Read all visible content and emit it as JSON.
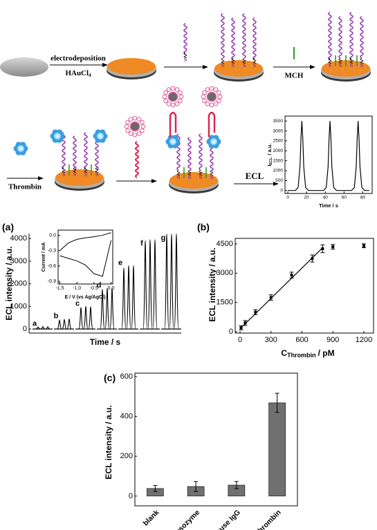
{
  "scheme": {
    "electrodeposition": "electrodeposition",
    "reagent": "HAuCl",
    "reagent_sub": "4",
    "mch": "MCH",
    "thrombin": "Thrombin",
    "ecl": "ECL",
    "thiol": "S"
  },
  "chart_data": [
    {
      "type": "line",
      "ylabel": "I",
      "ylabel_sub": "ECL",
      "ylabel_unit": "/ a.u.",
      "xlabel": "Time / s",
      "color": "#000000",
      "x": [
        0,
        8,
        11,
        13,
        14,
        15,
        16,
        17,
        19,
        22,
        38,
        41,
        43,
        44,
        45,
        46,
        47,
        49,
        52,
        68,
        71,
        73,
        74,
        75,
        76,
        77,
        79,
        82,
        87
      ],
      "values": [
        0,
        0,
        150,
        1200,
        2600,
        3500,
        2600,
        1200,
        150,
        0,
        0,
        150,
        1200,
        2600,
        3500,
        2600,
        1200,
        150,
        0,
        0,
        150,
        1200,
        2600,
        3500,
        2600,
        1200,
        150,
        0,
        0
      ],
      "xlim": [
        -3,
        90
      ],
      "ylim": [
        -150,
        3750
      ],
      "xticks": [
        0,
        20,
        40,
        60,
        80
      ],
      "yticks": [
        0,
        500,
        1000,
        1500,
        2000,
        2500,
        3000,
        3500
      ]
    },
    {
      "type": "peaks",
      "label": "(a)",
      "ylabel": "ECL intensity / a.u.",
      "xlabel": "Time / s",
      "color": "#000000",
      "ylim": [
        -180,
        4220
      ],
      "yticks": [
        0,
        1000,
        2000,
        3000,
        4000
      ],
      "groups": [
        {
          "label": "a",
          "values": [
            90,
            110,
            100
          ]
        },
        {
          "label": "b",
          "values": [
            400,
            430,
            450
          ]
        },
        {
          "label": "c",
          "values": [
            950,
            1000,
            980
          ]
        },
        {
          "label": "d",
          "values": [
            1750,
            1800,
            1800
          ]
        },
        {
          "label": "e",
          "values": [
            2700,
            2800,
            2800
          ]
        },
        {
          "label": "f",
          "values": [
            3900,
            3950,
            3950
          ]
        },
        {
          "label": "g",
          "values": [
            4200,
            4200,
            4200
          ]
        }
      ],
      "inset": {
        "type": "line",
        "xlabel": "E / V (vs Ag/AgCl)",
        "ylabel": "Current / mA",
        "color": "#000000",
        "x": [
          -1.5,
          -1.25,
          -1,
          -0.75,
          -0.5,
          -0.25,
          0
        ],
        "series": [
          {
            "values": [
              -0.3,
              -0.15,
              -0.08,
              -0.05,
              -0.03,
              0,
              0.05
            ]
          },
          {
            "values": [
              -0.4,
              -0.45,
              -0.5,
              -0.58,
              -0.75,
              -0.8,
              -0.1
            ]
          }
        ],
        "xlim": [
          -1.55,
          0.05
        ],
        "ylim": [
          -0.95,
          0.1
        ],
        "xticks": [
          -1.5,
          {
            "value": -1,
            "label": "-1.0"
          },
          -0.5,
          {
            "value": 0,
            "label": "0.0"
          }
        ],
        "yticks": [
          {
            "value": 0,
            "label": "0.0"
          },
          -0.3,
          -0.6,
          -0.9
        ]
      }
    },
    {
      "type": "scatter",
      "label": "(b)",
      "ylabel": "ECL intensity / a.u.",
      "xlabel": "C",
      "xlabel_sub": "Thrombin",
      "xlabel_unit": "/ pM",
      "color": "#000000",
      "x": [
        10,
        50,
        150,
        300,
        500,
        700,
        800,
        900,
        1200
      ],
      "values": [
        200,
        450,
        1000,
        1750,
        2900,
        3750,
        4250,
        4350,
        4400
      ],
      "errors": [
        100,
        120,
        130,
        140,
        150,
        180,
        200,
        120,
        100
      ],
      "fit": {
        "x": [
          0,
          800
        ],
        "y": [
          150,
          4300
        ]
      },
      "xlim": [
        -47,
        1294
      ],
      "ylim": [
        -70,
        4780
      ],
      "xticks": [
        0,
        300,
        600,
        900,
        1200
      ],
      "yticks": [
        0,
        1500,
        3000,
        4500
      ]
    },
    {
      "type": "bar",
      "label": "(c)",
      "ylabel": "ECL intensity / a.u.",
      "color": "#707070",
      "categories": [
        "blank",
        "lysozyme",
        "mouse IgG",
        "thrombin"
      ],
      "values": [
        38,
        48,
        55,
        468
      ],
      "errors": [
        15,
        25,
        18,
        48
      ],
      "ylim": [
        -49,
        617
      ],
      "yticks": [
        0,
        200,
        400,
        600
      ]
    }
  ]
}
